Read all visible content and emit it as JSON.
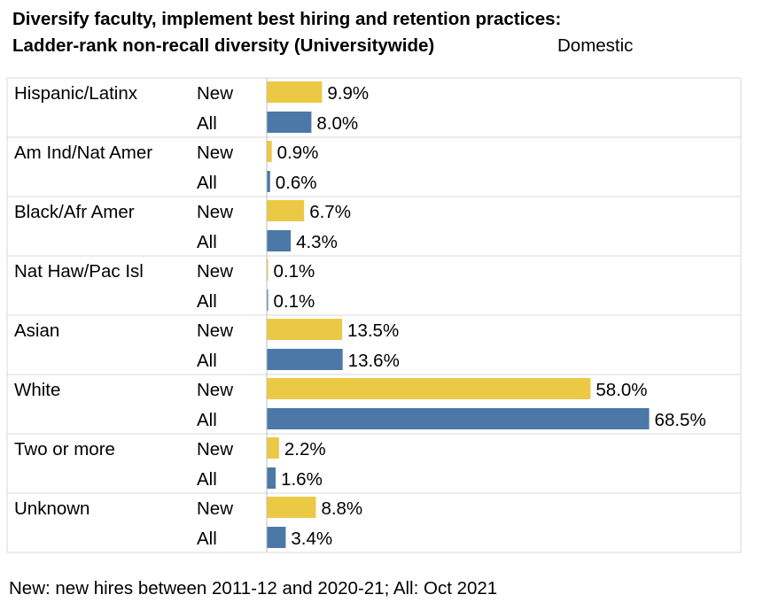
{
  "header": {
    "title_line1": "Diversify faculty, implement best hiring and retention practices:",
    "title_line2": "Ladder-rank non-recall diversity (Universitywide)",
    "subtitle": "Domestic"
  },
  "footnote": "New: new hires between 2011-12 and 2020-21; All: Oct 2021",
  "colors": {
    "new": "#ebc945",
    "all": "#4c78a8",
    "grid": "#d9d9d9",
    "axis": "#bfbfbf"
  },
  "chart_data": {
    "type": "bar",
    "orientation": "horizontal",
    "value_format": "percent",
    "xlim": [
      0,
      100
    ],
    "series_labels": [
      "New",
      "All"
    ],
    "groups": [
      {
        "category": "Hispanic/Latinx",
        "values": [
          9.9,
          8.0
        ],
        "labels": [
          "9.9%",
          "8.0%"
        ]
      },
      {
        "category": "Am Ind/Nat Amer",
        "values": [
          0.9,
          0.6
        ],
        "labels": [
          "0.9%",
          "0.6%"
        ]
      },
      {
        "category": "Black/Afr Amer",
        "values": [
          6.7,
          4.3
        ],
        "labels": [
          "6.7%",
          "4.3%"
        ]
      },
      {
        "category": "Nat Haw/Pac Isl",
        "values": [
          0.1,
          0.1
        ],
        "labels": [
          "0.1%",
          "0.1%"
        ]
      },
      {
        "category": "Asian",
        "values": [
          13.5,
          13.6
        ],
        "labels": [
          "13.5%",
          "13.6%"
        ]
      },
      {
        "category": "White",
        "values": [
          58.0,
          68.5
        ],
        "labels": [
          "58.0%",
          "68.5%"
        ]
      },
      {
        "category": "Two or more",
        "values": [
          2.2,
          1.6
        ],
        "labels": [
          "2.2%",
          "1.6%"
        ]
      },
      {
        "category": "Unknown",
        "values": [
          8.8,
          3.4
        ],
        "labels": [
          "8.8%",
          "3.4%"
        ]
      }
    ]
  }
}
